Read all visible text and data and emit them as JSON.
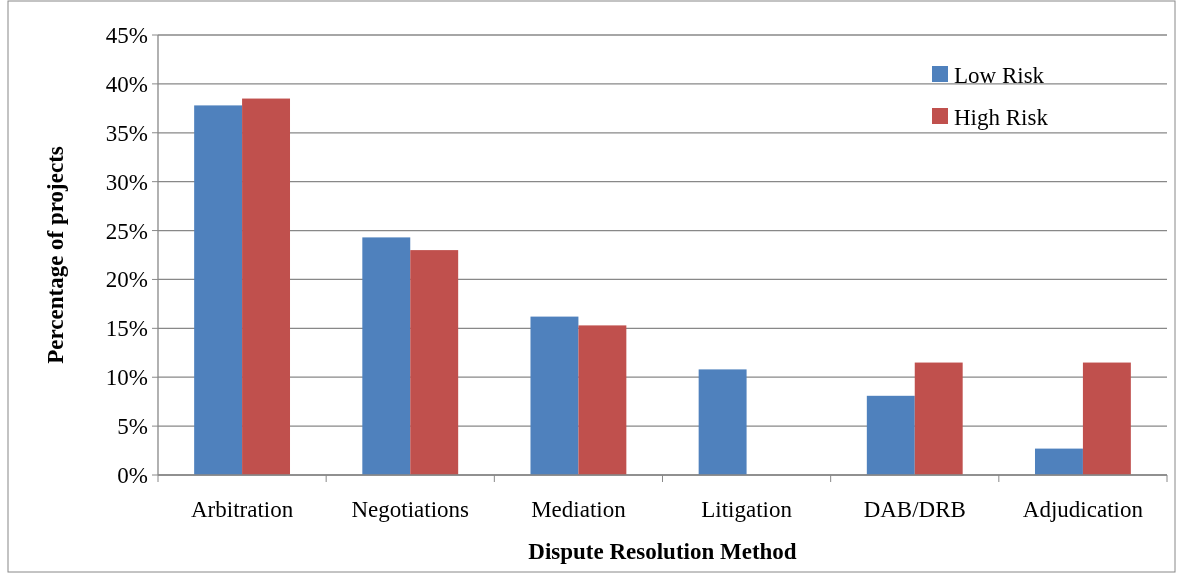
{
  "chart_data": {
    "type": "bar",
    "xlabel": "Dispute Resolution Method",
    "ylabel": "Percentage of projects",
    "categories": [
      "Arbitration",
      "Negotiations",
      "Mediation",
      "Litigation",
      "DAB/DRB",
      "Adjudication"
    ],
    "series": [
      {
        "name": "Low Risk",
        "color": "#4f81bd",
        "values": [
          37.8,
          24.3,
          16.2,
          10.8,
          8.1,
          2.7
        ]
      },
      {
        "name": "High Risk",
        "color": "#c0504d",
        "values": [
          38.5,
          23.0,
          15.3,
          0,
          11.5,
          11.5
        ]
      }
    ],
    "ylim": [
      0,
      45
    ],
    "yticks": [
      {
        "value": 0,
        "label": "0%"
      },
      {
        "value": 5,
        "label": "5%"
      },
      {
        "value": 10,
        "label": "10%"
      },
      {
        "value": 15,
        "label": "15%"
      },
      {
        "value": 20,
        "label": "20%"
      },
      {
        "value": 25,
        "label": "25%"
      },
      {
        "value": 30,
        "label": "30%"
      },
      {
        "value": 35,
        "label": "35%"
      },
      {
        "value": 40,
        "label": "40%"
      },
      {
        "value": 45,
        "label": "45%"
      }
    ],
    "grid": "y",
    "legend": "top right"
  }
}
